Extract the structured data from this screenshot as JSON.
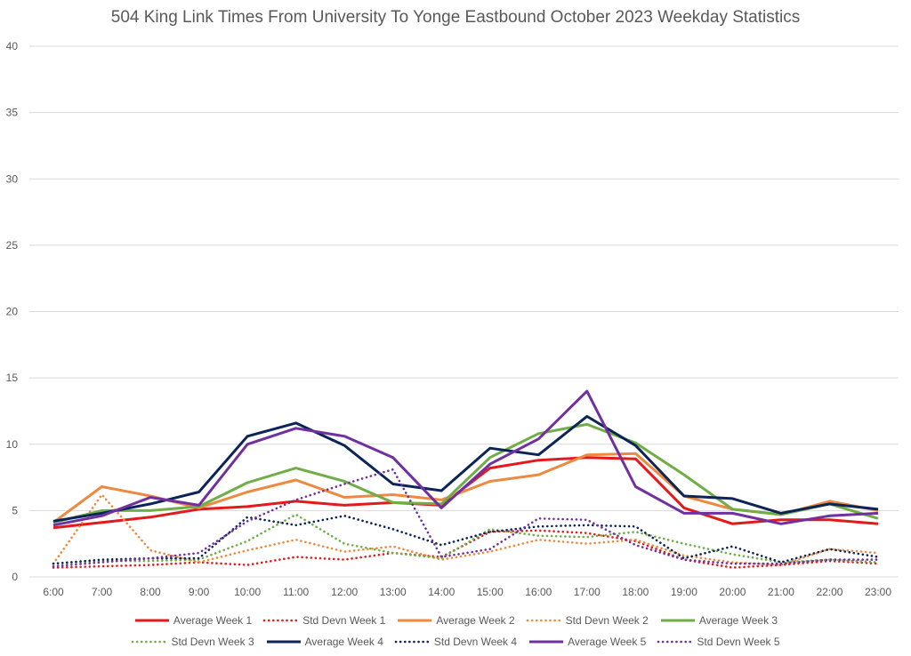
{
  "chart_data": {
    "type": "line",
    "title": "504 King Link Times From University To Yonge Eastbound October 2023 Weekday Statistics",
    "xlabel": "",
    "ylabel": "",
    "ylim": [
      0,
      40
    ],
    "yticks": [
      "0",
      "5",
      "10",
      "15",
      "20",
      "25",
      "30",
      "35",
      "40"
    ],
    "grid": true,
    "legend_position": "bottom",
    "categories": [
      "6:00",
      "7:00",
      "8:00",
      "9:00",
      "10:00",
      "11:00",
      "12:00",
      "13:00",
      "14:00",
      "15:00",
      "16:00",
      "17:00",
      "18:00",
      "19:00",
      "20:00",
      "21:00",
      "22:00",
      "23:00"
    ],
    "series": [
      {
        "name": "Average Week 1",
        "color": "#e31a1c",
        "style": "solid",
        "values": [
          3.7,
          4.1,
          4.5,
          5.1,
          5.3,
          5.7,
          5.4,
          5.6,
          5.4,
          8.2,
          8.8,
          9.0,
          8.9,
          5.2,
          4.0,
          4.3,
          4.3,
          4.0
        ]
      },
      {
        "name": "Std Devn Week 1",
        "color": "#e31a1c",
        "style": "dotted",
        "values": [
          0.7,
          0.8,
          0.9,
          1.1,
          0.9,
          1.5,
          1.3,
          1.8,
          1.5,
          3.4,
          3.5,
          3.3,
          2.7,
          1.3,
          0.7,
          0.9,
          1.2,
          1.0
        ]
      },
      {
        "name": "Average Week 2",
        "color": "#ed8a3f",
        "style": "solid",
        "values": [
          4.1,
          6.8,
          6.1,
          5.2,
          6.4,
          7.3,
          6.0,
          6.2,
          5.8,
          7.2,
          7.7,
          9.2,
          9.3,
          6.1,
          5.1,
          4.7,
          5.7,
          5.0
        ]
      },
      {
        "name": "Std Devn Week 2",
        "color": "#ed8a3f",
        "style": "dotted",
        "values": [
          1.0,
          6.2,
          2.0,
          1.1,
          2.0,
          2.8,
          1.9,
          2.3,
          1.3,
          1.9,
          2.8,
          2.5,
          2.8,
          1.6,
          1.1,
          0.9,
          2.1,
          1.8
        ]
      },
      {
        "name": "Average Week 3",
        "color": "#70ad47",
        "style": "solid",
        "values": [
          4.1,
          5.0,
          5.0,
          5.3,
          7.1,
          8.2,
          7.2,
          5.6,
          5.5,
          9.0,
          10.8,
          11.5,
          10.1,
          7.7,
          5.1,
          4.7,
          5.5,
          4.4
        ]
      },
      {
        "name": "Std Devn Week 3",
        "color": "#70ad47",
        "style": "dotted",
        "values": [
          1.0,
          1.2,
          1.2,
          1.3,
          2.7,
          4.7,
          2.5,
          1.8,
          1.4,
          3.6,
          3.1,
          3.0,
          3.4,
          2.5,
          1.7,
          1.1,
          1.3,
          1.1
        ]
      },
      {
        "name": "Average Week 4",
        "color": "#0d2457",
        "style": "solid",
        "values": [
          4.2,
          4.8,
          5.5,
          6.4,
          10.6,
          11.6,
          9.9,
          7.0,
          6.5,
          9.7,
          9.2,
          12.1,
          9.9,
          6.1,
          5.9,
          4.8,
          5.5,
          5.1
        ]
      },
      {
        "name": "Std Devn Week 4",
        "color": "#0d2457",
        "style": "dotted",
        "values": [
          1.0,
          1.3,
          1.4,
          1.4,
          4.5,
          3.9,
          4.6,
          3.6,
          2.4,
          3.4,
          3.8,
          3.9,
          3.8,
          1.4,
          2.3,
          1.1,
          2.1,
          1.5
        ]
      },
      {
        "name": "Average Week 5",
        "color": "#7030a0",
        "style": "solid",
        "values": [
          3.9,
          4.6,
          6.0,
          5.4,
          10.0,
          11.2,
          10.6,
          9.0,
          5.2,
          8.5,
          10.4,
          14.0,
          6.8,
          4.8,
          4.8,
          4.0,
          4.6,
          4.8
        ]
      },
      {
        "name": "Std Devn Week 5",
        "color": "#7030a0",
        "style": "dotted",
        "values": [
          0.8,
          1.1,
          1.4,
          1.8,
          4.2,
          5.8,
          7.0,
          8.1,
          1.5,
          2.1,
          4.4,
          4.3,
          2.4,
          1.3,
          1.0,
          1.0,
          1.3,
          1.3
        ]
      }
    ]
  }
}
